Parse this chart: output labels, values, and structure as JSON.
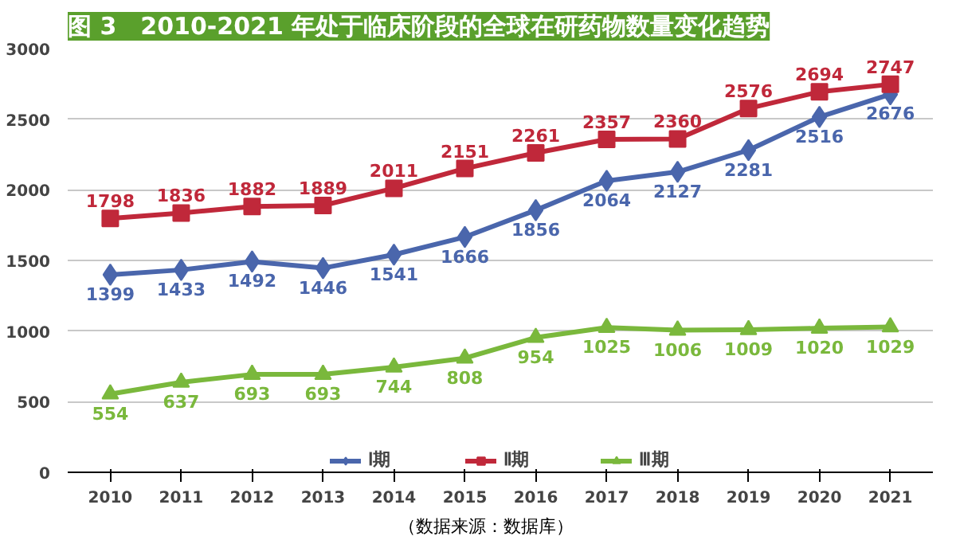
{
  "chart_data": {
    "type": "line",
    "title": "图 3　2010-2021 年处于临床阶段的全球在研药物数量变化趋势",
    "categories": [
      "2010",
      "2011",
      "2012",
      "2013",
      "2014",
      "2015",
      "2016",
      "2017",
      "2018",
      "2019",
      "2020",
      "2021"
    ],
    "series": [
      {
        "name": "Ⅰ期",
        "color": "#4a66ac",
        "marker": "diamond",
        "values": [
          1399,
          1433,
          1492,
          1446,
          1541,
          1666,
          1856,
          2064,
          2127,
          2281,
          2516,
          2676
        ]
      },
      {
        "name": "Ⅱ期",
        "color": "#c0283a",
        "marker": "square",
        "values": [
          1798,
          1836,
          1882,
          1889,
          2011,
          2151,
          2261,
          2357,
          2360,
          2576,
          2694,
          2747
        ]
      },
      {
        "name": "Ⅲ期",
        "color": "#7ab83c",
        "marker": "triangle",
        "values": [
          554,
          637,
          693,
          693,
          744,
          808,
          954,
          1025,
          1006,
          1009,
          1020,
          1029
        ]
      }
    ],
    "ylim": [
      0,
      3000
    ],
    "yticks": [
      0,
      500,
      1000,
      1500,
      2000,
      2500,
      3000
    ],
    "grid": "y",
    "legend": "bottom",
    "data_labels": true,
    "line_style": "solid",
    "annotations": [
      "（数据来源：数据库）"
    ]
  }
}
